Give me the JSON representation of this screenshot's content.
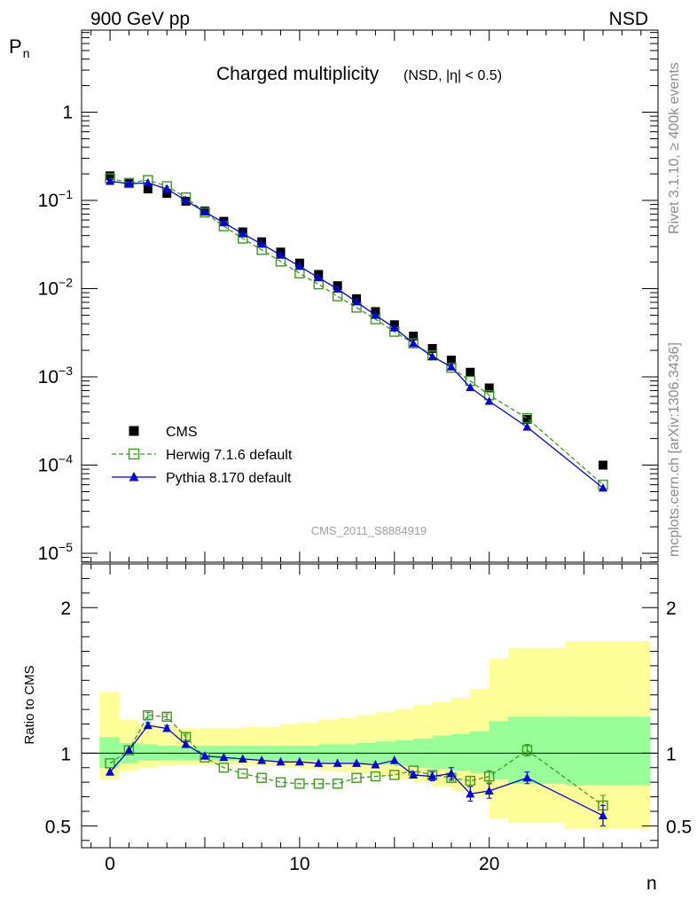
{
  "header": {
    "left": "900 GeV pp",
    "right": "NSD"
  },
  "chart_data": {
    "type": "scatter",
    "title_main": "Charged multiplicity",
    "title_sub": "(NSD, |η| < 0.5)",
    "ylabel_top_base": "P",
    "ylabel_top_sub": "n",
    "ylabel_bottom": "Ratio to CMS",
    "xlabel": "n",
    "x_range": [
      -1.5,
      28.9
    ],
    "y_top_log_range": [
      -5.1,
      0.93
    ],
    "y_bottom_range": [
      0.35,
      2.3
    ],
    "x_ticks": [
      0,
      10,
      20
    ],
    "x_tick_labels": [
      "0",
      "10",
      "20"
    ],
    "y_top_ticks_exp": [
      -5,
      -4,
      -3,
      -2,
      -1,
      0
    ],
    "y_top_tick_labels": [
      {
        "base": "10",
        "exp": "−5"
      },
      {
        "base": "10",
        "exp": "−4"
      },
      {
        "base": "10",
        "exp": "−3"
      },
      {
        "base": "10",
        "exp": "−2"
      },
      {
        "base": "10",
        "exp": "−1"
      },
      {
        "base": "1",
        "exp": ""
      }
    ],
    "y_bottom_ticks": [
      0.5,
      1,
      2
    ],
    "y_bottom_tick_labels": [
      "0.5",
      "1",
      "2"
    ],
    "bins": [
      [
        -0.5,
        0.5
      ],
      [
        0.5,
        1.5
      ],
      [
        1.5,
        2.5
      ],
      [
        2.5,
        3.5
      ],
      [
        3.5,
        4.5
      ],
      [
        4.5,
        5.5
      ],
      [
        5.5,
        6.5
      ],
      [
        6.5,
        7.5
      ],
      [
        7.5,
        8.5
      ],
      [
        8.5,
        9.5
      ],
      [
        9.5,
        10.5
      ],
      [
        10.5,
        11.5
      ],
      [
        11.5,
        12.5
      ],
      [
        12.5,
        13.5
      ],
      [
        13.5,
        14.5
      ],
      [
        14.5,
        15.5
      ],
      [
        15.5,
        16.5
      ],
      [
        16.5,
        17.5
      ],
      [
        17.5,
        18.5
      ],
      [
        18.5,
        19.5
      ],
      [
        19.5,
        20.5
      ],
      [
        20.5,
        23.5
      ],
      [
        23.5,
        28.5
      ]
    ],
    "band_yellow": [
      [
        0.82,
        1.42
      ],
      [
        0.88,
        1.23
      ],
      [
        0.9,
        1.2
      ],
      [
        0.91,
        1.19
      ],
      [
        0.92,
        1.17
      ],
      [
        0.92,
        1.17
      ],
      [
        0.92,
        1.17
      ],
      [
        0.92,
        1.17
      ],
      [
        0.91,
        1.18
      ],
      [
        0.91,
        1.18
      ],
      [
        0.9,
        1.2
      ],
      [
        0.89,
        1.21
      ],
      [
        0.88,
        1.23
      ],
      [
        0.87,
        1.24
      ],
      [
        0.86,
        1.26
      ],
      [
        0.84,
        1.28
      ],
      [
        0.82,
        1.3
      ],
      [
        0.8,
        1.33
      ],
      [
        0.77,
        1.35
      ],
      [
        0.74,
        1.38
      ],
      [
        0.7,
        1.44
      ],
      [
        0.55,
        1.65
      ],
      [
        0.52,
        1.72
      ],
      [
        0.48,
        1.77
      ]
    ],
    "band_green": [
      [
        0.9,
        1.11
      ],
      [
        0.93,
        1.07
      ],
      [
        0.95,
        1.06
      ],
      [
        0.95,
        1.05
      ],
      [
        0.95,
        1.05
      ],
      [
        0.95,
        1.05
      ],
      [
        0.95,
        1.05
      ],
      [
        0.95,
        1.05
      ],
      [
        0.95,
        1.05
      ],
      [
        0.95,
        1.05
      ],
      [
        0.95,
        1.05
      ],
      [
        0.95,
        1.05
      ],
      [
        0.94,
        1.06
      ],
      [
        0.94,
        1.06
      ],
      [
        0.93,
        1.07
      ],
      [
        0.92,
        1.08
      ],
      [
        0.91,
        1.09
      ],
      [
        0.9,
        1.1
      ],
      [
        0.89,
        1.12
      ],
      [
        0.88,
        1.13
      ],
      [
        0.86,
        1.15
      ],
      [
        0.82,
        1.22
      ],
      [
        0.79,
        1.25
      ],
      [
        0.78,
        1.25
      ]
    ],
    "series": [
      {
        "name": "CMS",
        "style": "square-filled",
        "color": "#000000",
        "x": [
          0,
          1,
          2,
          3,
          4,
          5,
          6,
          7,
          8,
          9,
          10,
          11,
          12,
          13,
          14,
          15,
          16,
          17,
          18,
          19,
          20,
          22,
          26
        ],
        "y": [
          0.19,
          0.155,
          0.135,
          0.12,
          0.098,
          0.076,
          0.058,
          0.044,
          0.034,
          0.026,
          0.0195,
          0.0145,
          0.0108,
          0.0077,
          0.0055,
          0.0039,
          0.0029,
          0.0021,
          0.00155,
          0.00113,
          0.00075,
          0.00033,
          0.0001
        ]
      },
      {
        "name": "Herwig 7.1.6 default",
        "style": "square-open-dashed",
        "color": "#3c9a1e",
        "x": [
          0,
          1,
          2,
          3,
          4,
          5,
          6,
          7,
          8,
          9,
          10,
          11,
          12,
          13,
          14,
          15,
          16,
          17,
          18,
          19,
          20,
          22,
          26
        ],
        "y": [
          0.178,
          0.158,
          0.17,
          0.145,
          0.108,
          0.073,
          0.051,
          0.037,
          0.0275,
          0.0203,
          0.0149,
          0.0112,
          0.0082,
          0.0061,
          0.0045,
          0.00325,
          0.0024,
          0.00175,
          0.00127,
          0.0009,
          0.00062,
          0.00034,
          6e-05
        ],
        "ratio": [
          0.93,
          1.02,
          1.26,
          1.25,
          1.11,
          0.97,
          0.9,
          0.86,
          0.83,
          0.8,
          0.79,
          0.79,
          0.79,
          0.83,
          0.84,
          0.85,
          0.88,
          0.85,
          0.83,
          0.81,
          0.84,
          1.02,
          0.64
        ],
        "ratio_err": [
          0,
          0,
          0.02,
          0.02,
          0.02,
          0,
          0,
          0,
          0,
          0,
          0,
          0,
          0,
          0,
          0,
          0,
          0,
          0.02,
          0.02,
          0.03,
          0.04,
          0.04,
          0.07
        ]
      },
      {
        "name": "Pythia 8.170 default",
        "style": "triangle-solid",
        "color": "#0000d9",
        "x": [
          0,
          1,
          2,
          3,
          4,
          5,
          6,
          7,
          8,
          9,
          10,
          11,
          12,
          13,
          14,
          15,
          16,
          17,
          18,
          19,
          20,
          22,
          26
        ],
        "y": [
          0.165,
          0.155,
          0.158,
          0.135,
          0.1,
          0.074,
          0.056,
          0.042,
          0.032,
          0.024,
          0.0179,
          0.0133,
          0.0099,
          0.0071,
          0.005,
          0.0036,
          0.0024,
          0.0017,
          0.0013,
          0.00076,
          0.00053,
          0.00027,
          5.5e-05
        ],
        "ratio": [
          0.87,
          1.02,
          1.19,
          1.17,
          1.06,
          0.98,
          0.97,
          0.96,
          0.95,
          0.94,
          0.94,
          0.93,
          0.93,
          0.93,
          0.92,
          0.95,
          0.85,
          0.84,
          0.86,
          0.72,
          0.74,
          0.83,
          0.57
        ],
        "ratio_err": [
          0,
          0,
          0.02,
          0.02,
          0.02,
          0,
          0,
          0,
          0,
          0,
          0,
          0,
          0,
          0,
          0,
          0,
          0.02,
          0.03,
          0.04,
          0.05,
          0.05,
          0.04,
          0.07
        ]
      }
    ],
    "legend_position": "bottom-left",
    "analysis_label": "CMS_2011_S8884919",
    "side_label_top": "Rivet 3.1.10, ≥ 400k events",
    "side_label_bottom": "mcplots.cern.ch [arXiv:1306.3436]",
    "colors": {
      "yellow_band": "#ffff99",
      "green_band": "#99ff99"
    }
  }
}
